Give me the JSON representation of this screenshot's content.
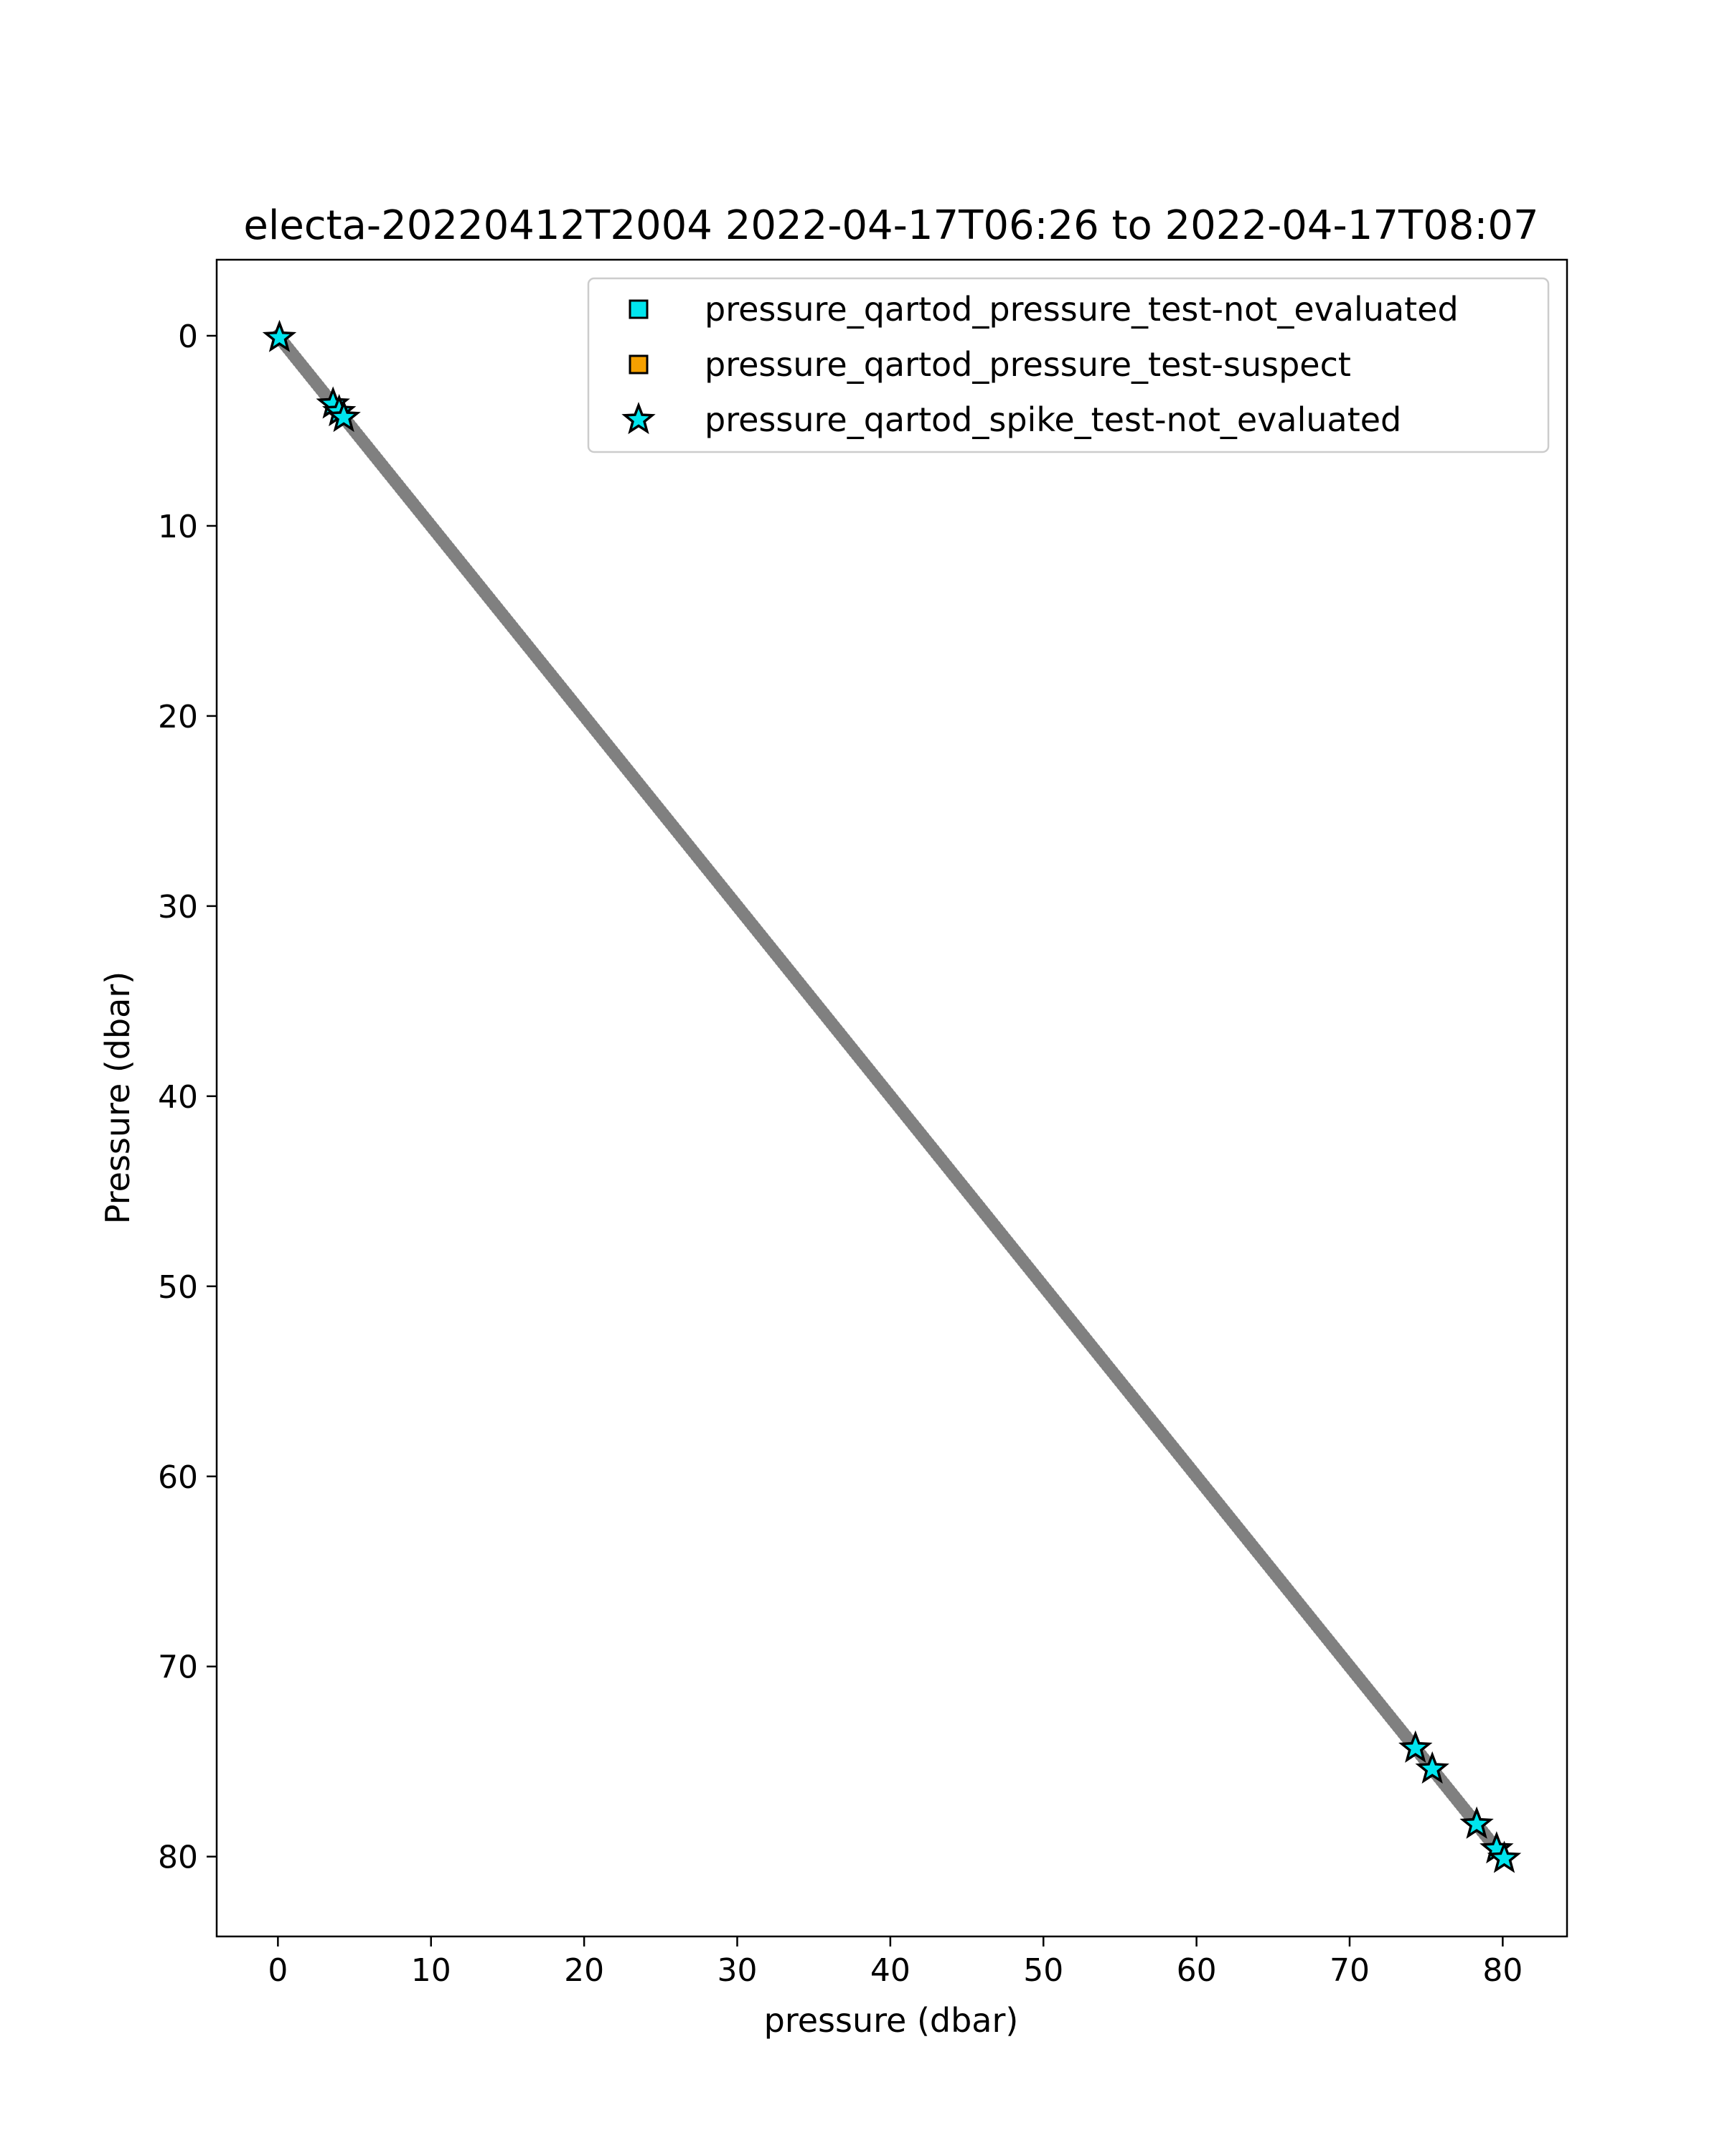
{
  "chart_data": {
    "type": "scatter",
    "title": "electa-20220412T2004 2022-04-17T06:26 to 2022-04-17T08:07",
    "xlabel": "pressure (dbar)",
    "ylabel": "Pressure (dbar)",
    "xlim": [
      -4,
      84.2
    ],
    "ylim": [
      84.2,
      -4
    ],
    "y_inverted": true,
    "xticks": [
      0,
      10,
      20,
      30,
      40,
      50,
      60,
      70,
      80
    ],
    "yticks": [
      0,
      10,
      20,
      30,
      40,
      50,
      60,
      70,
      80
    ],
    "grid": false,
    "legend_position": "top-right",
    "base_series": {
      "color": "#808080",
      "x_range": [
        0,
        80
      ],
      "y_range": [
        0,
        80
      ],
      "note_shape": "dense points along y = x"
    },
    "series": [
      {
        "name": "pressure_qartod_pressure_test-not_evaluated",
        "marker": "square",
        "color": "#00e5ee",
        "x": [],
        "y": []
      },
      {
        "name": "pressure_qartod_pressure_test-suspect",
        "marker": "square",
        "color": "#f5a000",
        "x": [],
        "y": []
      },
      {
        "name": "pressure_qartod_spike_test-not_evaluated",
        "marker": "star",
        "color": "#00e5ee",
        "x": [
          0.1,
          3.6,
          4.0,
          4.3,
          74.3,
          75.4,
          78.3,
          79.6,
          80.1
        ],
        "y": [
          0.1,
          3.6,
          4.0,
          4.3,
          74.3,
          75.4,
          78.3,
          79.6,
          80.1
        ]
      }
    ]
  }
}
